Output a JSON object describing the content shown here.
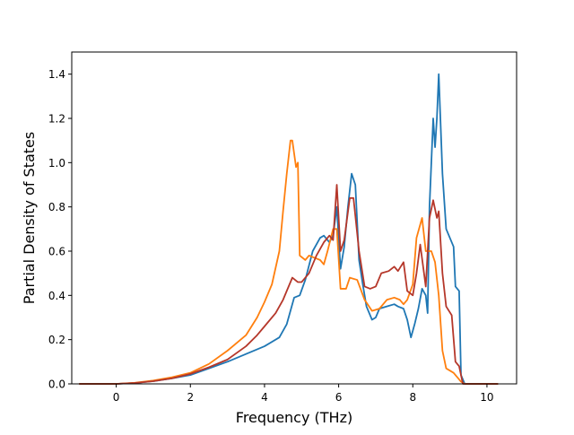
{
  "chart_data": {
    "type": "line",
    "title": "",
    "xlabel": "Frequency (THz)",
    "ylabel": "Partial Density of States",
    "xlim": [
      -1.2,
      10.8
    ],
    "ylim": [
      0,
      1.5
    ],
    "xticks": [
      0,
      2,
      4,
      6,
      8,
      10
    ],
    "yticks": [
      0.0,
      0.2,
      0.4,
      0.6,
      0.8,
      1.0,
      1.2,
      1.4
    ],
    "xtick_labels": [
      "0",
      "2",
      "4",
      "6",
      "8",
      "10"
    ],
    "ytick_labels": [
      "0.0",
      "0.2",
      "0.4",
      "0.6",
      "0.8",
      "1.0",
      "1.2",
      "1.4"
    ],
    "grid": false,
    "legend": false,
    "series": [
      {
        "color": "#1f77b4",
        "points": [
          [
            -1.0,
            0
          ],
          [
            0,
            0
          ],
          [
            0.5,
            0.004
          ],
          [
            1.0,
            0.012
          ],
          [
            1.5,
            0.025
          ],
          [
            2.0,
            0.04
          ],
          [
            2.5,
            0.07
          ],
          [
            3.0,
            0.1
          ],
          [
            3.5,
            0.135
          ],
          [
            4.0,
            0.17
          ],
          [
            4.4,
            0.21
          ],
          [
            4.6,
            0.27
          ],
          [
            4.8,
            0.39
          ],
          [
            4.95,
            0.4
          ],
          [
            5.1,
            0.47
          ],
          [
            5.3,
            0.6
          ],
          [
            5.5,
            0.66
          ],
          [
            5.6,
            0.67
          ],
          [
            5.75,
            0.64
          ],
          [
            5.85,
            0.67
          ],
          [
            5.95,
            0.8
          ],
          [
            6.05,
            0.52
          ],
          [
            6.15,
            0.62
          ],
          [
            6.25,
            0.8
          ],
          [
            6.35,
            0.95
          ],
          [
            6.45,
            0.9
          ],
          [
            6.55,
            0.56
          ],
          [
            6.65,
            0.45
          ],
          [
            6.75,
            0.35
          ],
          [
            6.9,
            0.29
          ],
          [
            7.0,
            0.3
          ],
          [
            7.1,
            0.34
          ],
          [
            7.3,
            0.35
          ],
          [
            7.5,
            0.36
          ],
          [
            7.6,
            0.35
          ],
          [
            7.75,
            0.34
          ],
          [
            7.85,
            0.29
          ],
          [
            7.95,
            0.21
          ],
          [
            8.05,
            0.27
          ],
          [
            8.15,
            0.34
          ],
          [
            8.25,
            0.43
          ],
          [
            8.35,
            0.4
          ],
          [
            8.4,
            0.32
          ],
          [
            8.45,
            0.8
          ],
          [
            8.55,
            1.2
          ],
          [
            8.6,
            1.07
          ],
          [
            8.65,
            1.2
          ],
          [
            8.7,
            1.4
          ],
          [
            8.8,
            0.95
          ],
          [
            8.9,
            0.7
          ],
          [
            9.0,
            0.66
          ],
          [
            9.1,
            0.62
          ],
          [
            9.15,
            0.44
          ],
          [
            9.25,
            0.42
          ],
          [
            9.3,
            0.04
          ],
          [
            9.4,
            0
          ],
          [
            10.3,
            0
          ]
        ]
      },
      {
        "color": "#ff7f0e",
        "points": [
          [
            -1.0,
            0
          ],
          [
            0,
            0
          ],
          [
            0.5,
            0.005
          ],
          [
            1.0,
            0.015
          ],
          [
            1.5,
            0.03
          ],
          [
            2.0,
            0.05
          ],
          [
            2.5,
            0.09
          ],
          [
            3.0,
            0.15
          ],
          [
            3.5,
            0.22
          ],
          [
            3.8,
            0.3
          ],
          [
            4.0,
            0.37
          ],
          [
            4.2,
            0.45
          ],
          [
            4.4,
            0.6
          ],
          [
            4.5,
            0.78
          ],
          [
            4.6,
            0.95
          ],
          [
            4.7,
            1.1
          ],
          [
            4.75,
            1.1
          ],
          [
            4.85,
            0.98
          ],
          [
            4.9,
            1.0
          ],
          [
            4.95,
            0.58
          ],
          [
            5.1,
            0.56
          ],
          [
            5.2,
            0.58
          ],
          [
            5.35,
            0.57
          ],
          [
            5.5,
            0.56
          ],
          [
            5.6,
            0.54
          ],
          [
            5.7,
            0.6
          ],
          [
            5.85,
            0.7
          ],
          [
            5.95,
            0.7
          ],
          [
            6.05,
            0.43
          ],
          [
            6.2,
            0.43
          ],
          [
            6.3,
            0.48
          ],
          [
            6.5,
            0.47
          ],
          [
            6.7,
            0.38
          ],
          [
            6.9,
            0.33
          ],
          [
            7.1,
            0.34
          ],
          [
            7.3,
            0.38
          ],
          [
            7.5,
            0.39
          ],
          [
            7.65,
            0.38
          ],
          [
            7.75,
            0.36
          ],
          [
            7.85,
            0.38
          ],
          [
            8.0,
            0.45
          ],
          [
            8.1,
            0.66
          ],
          [
            8.25,
            0.75
          ],
          [
            8.35,
            0.6
          ],
          [
            8.5,
            0.6
          ],
          [
            8.6,
            0.55
          ],
          [
            8.7,
            0.4
          ],
          [
            8.8,
            0.15
          ],
          [
            8.9,
            0.07
          ],
          [
            9.0,
            0.06
          ],
          [
            9.1,
            0.05
          ],
          [
            9.2,
            0.03
          ],
          [
            9.3,
            0.01
          ],
          [
            9.4,
            0
          ],
          [
            10.3,
            0
          ]
        ]
      },
      {
        "color": "#b5372a",
        "points": [
          [
            -1.0,
            0
          ],
          [
            0,
            0
          ],
          [
            0.5,
            0.004
          ],
          [
            1.0,
            0.012
          ],
          [
            1.5,
            0.025
          ],
          [
            2.0,
            0.045
          ],
          [
            2.5,
            0.075
          ],
          [
            3.0,
            0.11
          ],
          [
            3.5,
            0.17
          ],
          [
            3.8,
            0.22
          ],
          [
            4.0,
            0.26
          ],
          [
            4.3,
            0.32
          ],
          [
            4.5,
            0.38
          ],
          [
            4.6,
            0.42
          ],
          [
            4.75,
            0.48
          ],
          [
            4.9,
            0.46
          ],
          [
            5.0,
            0.46
          ],
          [
            5.2,
            0.5
          ],
          [
            5.4,
            0.58
          ],
          [
            5.6,
            0.64
          ],
          [
            5.75,
            0.67
          ],
          [
            5.85,
            0.65
          ],
          [
            5.95,
            0.9
          ],
          [
            6.05,
            0.6
          ],
          [
            6.15,
            0.65
          ],
          [
            6.3,
            0.84
          ],
          [
            6.4,
            0.84
          ],
          [
            6.55,
            0.6
          ],
          [
            6.7,
            0.44
          ],
          [
            6.85,
            0.43
          ],
          [
            7.0,
            0.44
          ],
          [
            7.15,
            0.5
          ],
          [
            7.35,
            0.51
          ],
          [
            7.5,
            0.53
          ],
          [
            7.6,
            0.51
          ],
          [
            7.75,
            0.55
          ],
          [
            7.85,
            0.42
          ],
          [
            8.0,
            0.4
          ],
          [
            8.1,
            0.5
          ],
          [
            8.2,
            0.63
          ],
          [
            8.35,
            0.44
          ],
          [
            8.45,
            0.75
          ],
          [
            8.55,
            0.83
          ],
          [
            8.65,
            0.75
          ],
          [
            8.7,
            0.78
          ],
          [
            8.8,
            0.5
          ],
          [
            8.9,
            0.35
          ],
          [
            9.05,
            0.31
          ],
          [
            9.15,
            0.1
          ],
          [
            9.25,
            0.08
          ],
          [
            9.35,
            0
          ],
          [
            10.3,
            0
          ]
        ]
      }
    ]
  }
}
